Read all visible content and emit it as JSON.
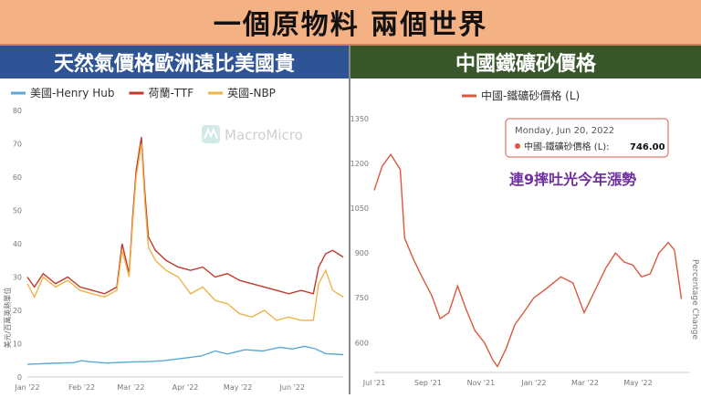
{
  "header": {
    "title": "一個原物料 兩個世界",
    "left_subtitle": "天然氣價格歐洲遠比美國貴",
    "right_subtitle": "中國鐵礦砂價格"
  },
  "left_panel": {
    "watermark": "MacroMicro",
    "colors": {
      "henry_hub": "#5aa9d6",
      "ttf": "#c0392b",
      "nbp": "#f0b24a"
    }
  },
  "right_panel": {
    "tooltip": {
      "date": "Monday, Jun 20, 2022",
      "label": "中國-鐵礦砂價格 (L):",
      "value": "746.00"
    },
    "annotation": "連9摔吐光今年漲勢",
    "right_axis_label": "Percentage Change",
    "colors": {
      "line": "#d9593f",
      "annotation": "#7030a0"
    }
  },
  "chart_data": [
    {
      "type": "line",
      "ylabel": "美元/百萬英熱單位",
      "ylim": [
        0,
        80
      ],
      "yticks": [
        0,
        10,
        20,
        30,
        40,
        50,
        60,
        70,
        80
      ],
      "xlim": [
        "2022-01-01",
        "2022-06-30"
      ],
      "xticks": [
        {
          "date": "2022-01-01",
          "label": "Jan '22"
        },
        {
          "date": "2022-02-01",
          "label": "Feb '22"
        },
        {
          "date": "2022-03-01",
          "label": "Mar '22"
        },
        {
          "date": "2022-04-01",
          "label": "Apr '22"
        },
        {
          "date": "2022-05-01",
          "label": "May '22"
        },
        {
          "date": "2022-06-01",
          "label": "Jun '22"
        }
      ],
      "legend_position": "top",
      "grid": false,
      "series": [
        {
          "name": "美國-Henry Hub",
          "color": "#5aa9d6",
          "points": [
            [
              "2022-01-01",
              3.8
            ],
            [
              "2022-01-15",
              4.1
            ],
            [
              "2022-01-27",
              4.3
            ],
            [
              "2022-02-01",
              4.9
            ],
            [
              "2022-02-05",
              4.6
            ],
            [
              "2022-02-15",
              4.2
            ],
            [
              "2022-02-28",
              4.5
            ],
            [
              "2022-03-10",
              4.6
            ],
            [
              "2022-03-20",
              4.9
            ],
            [
              "2022-04-01",
              5.7
            ],
            [
              "2022-04-10",
              6.3
            ],
            [
              "2022-04-18",
              7.8
            ],
            [
              "2022-04-25",
              6.9
            ],
            [
              "2022-05-05",
              8.2
            ],
            [
              "2022-05-15",
              7.8
            ],
            [
              "2022-05-25",
              8.9
            ],
            [
              "2022-06-01",
              8.4
            ],
            [
              "2022-06-08",
              9.2
            ],
            [
              "2022-06-14",
              8.5
            ],
            [
              "2022-06-20",
              7.0
            ],
            [
              "2022-06-30",
              6.7
            ]
          ]
        },
        {
          "name": "荷蘭-TTF",
          "color": "#c0392b",
          "points": [
            [
              "2022-01-01",
              30
            ],
            [
              "2022-01-05",
              27
            ],
            [
              "2022-01-10",
              31
            ],
            [
              "2022-01-17",
              28
            ],
            [
              "2022-01-24",
              30
            ],
            [
              "2022-01-31",
              27
            ],
            [
              "2022-02-07",
              26
            ],
            [
              "2022-02-14",
              25
            ],
            [
              "2022-02-21",
              27
            ],
            [
              "2022-02-24",
              40
            ],
            [
              "2022-02-28",
              31
            ],
            [
              "2022-03-02",
              48
            ],
            [
              "2022-03-04",
              62
            ],
            [
              "2022-03-07",
              72
            ],
            [
              "2022-03-09",
              55
            ],
            [
              "2022-03-11",
              42
            ],
            [
              "2022-03-15",
              38
            ],
            [
              "2022-03-21",
              35
            ],
            [
              "2022-03-28",
              33
            ],
            [
              "2022-04-04",
              32
            ],
            [
              "2022-04-11",
              33
            ],
            [
              "2022-04-18",
              30
            ],
            [
              "2022-04-25",
              31
            ],
            [
              "2022-05-02",
              29
            ],
            [
              "2022-05-09",
              28
            ],
            [
              "2022-05-16",
              27
            ],
            [
              "2022-05-23",
              26
            ],
            [
              "2022-05-30",
              25
            ],
            [
              "2022-06-06",
              26
            ],
            [
              "2022-06-13",
              25
            ],
            [
              "2022-06-16",
              33
            ],
            [
              "2022-06-20",
              37
            ],
            [
              "2022-06-24",
              38
            ],
            [
              "2022-06-30",
              36
            ]
          ]
        },
        {
          "name": "英國-NBP",
          "color": "#f0b24a",
          "points": [
            [
              "2022-01-01",
              28
            ],
            [
              "2022-01-05",
              24
            ],
            [
              "2022-01-10",
              30
            ],
            [
              "2022-01-17",
              27
            ],
            [
              "2022-01-24",
              29
            ],
            [
              "2022-01-31",
              26
            ],
            [
              "2022-02-07",
              25
            ],
            [
              "2022-02-14",
              24
            ],
            [
              "2022-02-21",
              26
            ],
            [
              "2022-02-24",
              38
            ],
            [
              "2022-02-28",
              30
            ],
            [
              "2022-03-02",
              46
            ],
            [
              "2022-03-04",
              60
            ],
            [
              "2022-03-07",
              70
            ],
            [
              "2022-03-09",
              52
            ],
            [
              "2022-03-11",
              39
            ],
            [
              "2022-03-15",
              35
            ],
            [
              "2022-03-21",
              32
            ],
            [
              "2022-03-28",
              30
            ],
            [
              "2022-04-04",
              25
            ],
            [
              "2022-04-11",
              27
            ],
            [
              "2022-04-18",
              23
            ],
            [
              "2022-04-25",
              22
            ],
            [
              "2022-05-02",
              19
            ],
            [
              "2022-05-09",
              18
            ],
            [
              "2022-05-16",
              20
            ],
            [
              "2022-05-23",
              17
            ],
            [
              "2022-05-30",
              18
            ],
            [
              "2022-06-06",
              17
            ],
            [
              "2022-06-13",
              17
            ],
            [
              "2022-06-16",
              28
            ],
            [
              "2022-06-20",
              32
            ],
            [
              "2022-06-24",
              26
            ],
            [
              "2022-06-30",
              24
            ]
          ]
        }
      ]
    },
    {
      "type": "line",
      "ylim": [
        500,
        1350
      ],
      "yticks": [
        1350,
        1200,
        1050,
        900,
        750,
        600
      ],
      "xlim": [
        "2021-07-01",
        "2022-06-30"
      ],
      "xticks": [
        {
          "date": "2021-07-01",
          "label": "Jul '21"
        },
        {
          "date": "2021-09-01",
          "label": "Sep '21"
        },
        {
          "date": "2021-11-01",
          "label": "Nov '21"
        },
        {
          "date": "2022-01-01",
          "label": "Jan '22"
        },
        {
          "date": "2022-03-01",
          "label": "Mar '22"
        },
        {
          "date": "2022-05-01",
          "label": "May '22"
        }
      ],
      "legend_position": "top",
      "grid": false,
      "series": [
        {
          "name": "中國-鐵礦砂價格 (L)",
          "color": "#d9593f",
          "points": [
            [
              "2021-07-01",
              1110
            ],
            [
              "2021-07-10",
              1190
            ],
            [
              "2021-07-20",
              1230
            ],
            [
              "2021-07-31",
              1180
            ],
            [
              "2021-08-05",
              950
            ],
            [
              "2021-08-15",
              880
            ],
            [
              "2021-08-25",
              820
            ],
            [
              "2021-09-05",
              760
            ],
            [
              "2021-09-15",
              680
            ],
            [
              "2021-09-25",
              700
            ],
            [
              "2021-10-05",
              790
            ],
            [
              "2021-10-15",
              710
            ],
            [
              "2021-10-25",
              640
            ],
            [
              "2021-11-05",
              600
            ],
            [
              "2021-11-15",
              540
            ],
            [
              "2021-11-20",
              520
            ],
            [
              "2021-11-30",
              580
            ],
            [
              "2021-12-10",
              660
            ],
            [
              "2021-12-20",
              700
            ],
            [
              "2022-01-01",
              750
            ],
            [
              "2022-01-15",
              780
            ],
            [
              "2022-02-01",
              820
            ],
            [
              "2022-02-15",
              800
            ],
            [
              "2022-02-28",
              700
            ],
            [
              "2022-03-10",
              760
            ],
            [
              "2022-03-25",
              850
            ],
            [
              "2022-04-05",
              900
            ],
            [
              "2022-04-15",
              870
            ],
            [
              "2022-04-25",
              860
            ],
            [
              "2022-05-05",
              820
            ],
            [
              "2022-05-15",
              830
            ],
            [
              "2022-05-25",
              900
            ],
            [
              "2022-06-05",
              935
            ],
            [
              "2022-06-12",
              910
            ],
            [
              "2022-06-20",
              746
            ]
          ]
        }
      ]
    }
  ]
}
